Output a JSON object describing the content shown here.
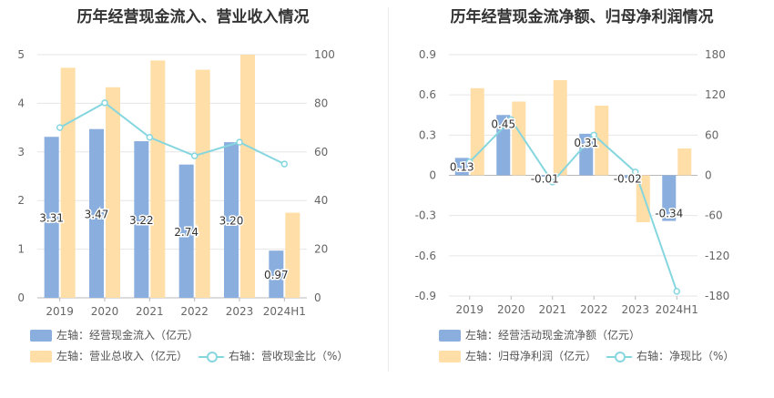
{
  "colors": {
    "blue": "#8aaedd",
    "orange": "#ffdea8",
    "cyan": "#86d6df",
    "grid": "#e6e6e6",
    "axis_text": "#666666"
  },
  "chart_data": [
    {
      "type": "bar",
      "title": "历年经营现金流入、营业收入情况",
      "categories": [
        "2019",
        "2020",
        "2021",
        "2022",
        "2023",
        "2024H1"
      ],
      "left_axis": {
        "ticks": [
          "0",
          "1",
          "2",
          "3",
          "4",
          "5"
        ],
        "range": [
          0,
          5
        ]
      },
      "right_axis": {
        "ticks": [
          "0",
          "20",
          "40",
          "60",
          "80",
          "100"
        ],
        "range": [
          0,
          100
        ]
      },
      "series": [
        {
          "name": "左轴：经营现金流入（亿元）",
          "kind": "bar",
          "axis": "left",
          "values": [
            3.31,
            3.47,
            3.22,
            2.74,
            3.2,
            0.97
          ],
          "labels": [
            "3.31",
            "3.47",
            "3.22",
            "2.74",
            "3.20",
            "0.97"
          ]
        },
        {
          "name": "左轴：营业总收入（亿元）",
          "kind": "bar",
          "axis": "left",
          "values": [
            4.73,
            4.33,
            4.88,
            4.69,
            5.0,
            1.75
          ]
        },
        {
          "name": "右轴：营收现金比（%）",
          "kind": "line",
          "axis": "right",
          "values": [
            70,
            80.2,
            66,
            58.4,
            64,
            55
          ]
        }
      ]
    },
    {
      "type": "bar",
      "title": "历年经营现金流净额、归母净利润情况",
      "categories": [
        "2019",
        "2020",
        "2021",
        "2022",
        "2023",
        "2024H1"
      ],
      "left_axis": {
        "ticks": [
          "-0.9",
          "-0.6",
          "-0.3",
          "0",
          "0.3",
          "0.6",
          "0.9"
        ],
        "range": [
          -0.9,
          0.9
        ]
      },
      "right_axis": {
        "ticks": [
          "-180",
          "-120",
          "-60",
          "0",
          "60",
          "120",
          "180"
        ],
        "range": [
          -180,
          180
        ]
      },
      "series": [
        {
          "name": "左轴：经营活动现金流净额（亿元）",
          "kind": "bar",
          "axis": "left",
          "values": [
            0.13,
            0.45,
            -0.01,
            0.31,
            -0.02,
            -0.34
          ],
          "labels": [
            "0.13",
            "0.45",
            "-0.01",
            "0.31",
            "-0.02",
            "-0.34"
          ]
        },
        {
          "name": "左轴：归母净利润（亿元）",
          "kind": "bar",
          "axis": "left",
          "values": [
            0.65,
            0.55,
            0.71,
            0.52,
            -0.35,
            0.2
          ]
        },
        {
          "name": "右轴：净现比（%）",
          "kind": "line",
          "axis": "right",
          "values": [
            20,
            83,
            -10,
            60,
            5,
            -173
          ]
        }
      ]
    }
  ]
}
